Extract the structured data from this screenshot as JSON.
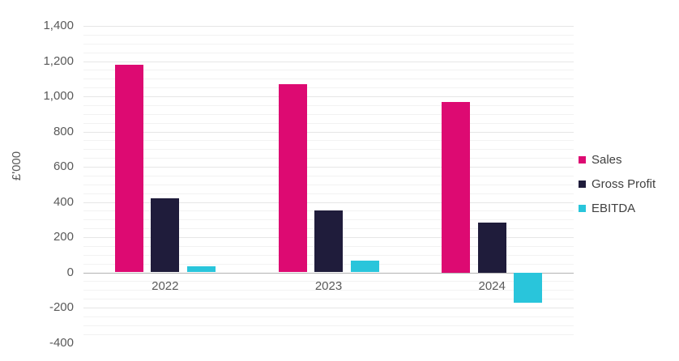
{
  "chart_data": {
    "type": "bar",
    "title": "",
    "ylabel": "£'000",
    "xlabel": "",
    "categories": [
      "2022",
      "2023",
      "2024"
    ],
    "series": [
      {
        "name": "Sales",
        "color": "#DD0A72",
        "values": [
          1180,
          1070,
          970
        ]
      },
      {
        "name": "Gross Profit",
        "color": "#1F1C3B",
        "values": [
          420,
          350,
          285
        ]
      },
      {
        "name": "EBITDA",
        "color": "#29C5DB",
        "values": [
          35,
          65,
          -170
        ]
      }
    ],
    "ylim": [
      -400,
      1400
    ],
    "y_major_step": 200,
    "y_minor_step": 50,
    "y_tick_labels": [
      "1,400",
      "1,200",
      "1,000",
      "800",
      "600",
      "400",
      "200",
      "0",
      "-200",
      "-400"
    ],
    "legend_position": "right",
    "grid": "horizontal minor and major gridlines, darker zero axis line"
  },
  "colors": {
    "background": "#FFFFFF",
    "minor_gridline": "#F2F2F2",
    "major_gridline": "#E6E6E6",
    "zero_axis_line": "#B3B3B3",
    "axis_text": "#595959",
    "legend_text": "#404040"
  }
}
